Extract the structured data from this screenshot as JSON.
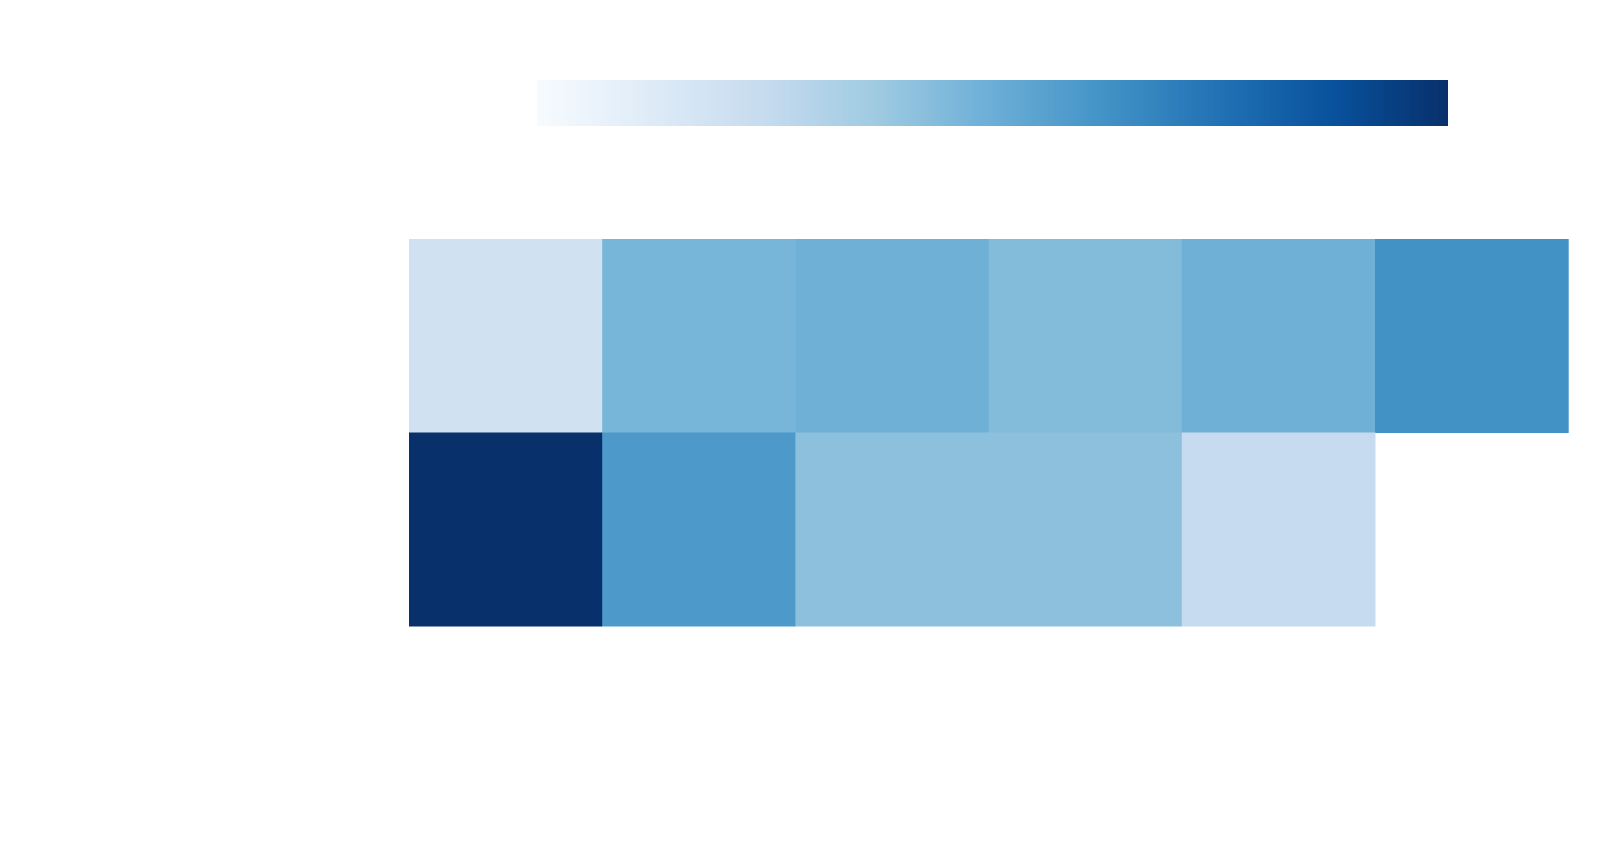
{
  "chart_data": {
    "type": "heatmap",
    "x": [
      null,
      null,
      null,
      null,
      null,
      null
    ],
    "y": [
      null,
      null
    ],
    "values": [
      [
        0.2,
        0.47,
        0.49,
        0.44,
        0.49,
        0.625
      ],
      [
        1.0,
        0.59,
        0.42,
        0.42,
        0.25,
        null
      ]
    ],
    "zlim": [
      0,
      1
    ],
    "colorscale": [
      "#f7fbff",
      "#deebf7",
      "#c6dbef",
      "#9ecae1",
      "#6baed6",
      "#4292c6",
      "#2171b5",
      "#08519c",
      "#08306b"
    ],
    "colorbar": true
  }
}
